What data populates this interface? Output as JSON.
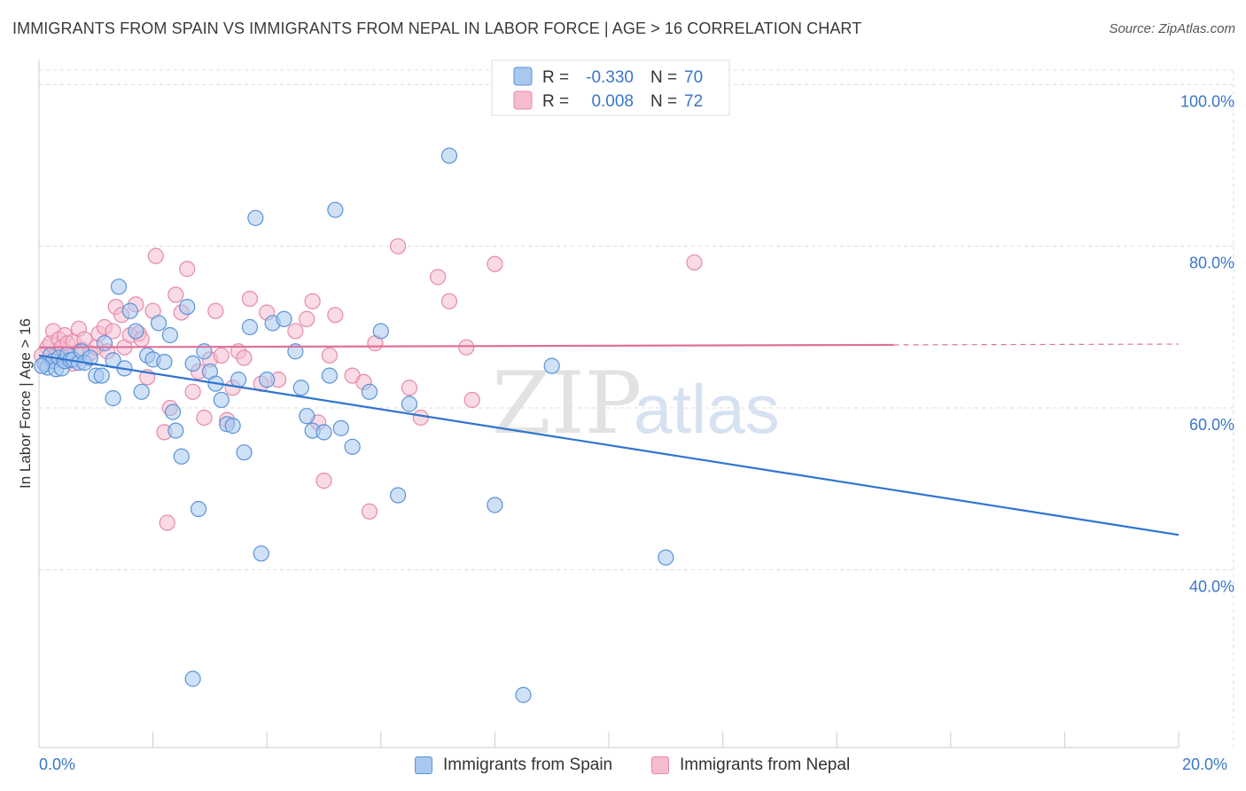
{
  "title": "IMMIGRANTS FROM SPAIN VS IMMIGRANTS FROM NEPAL IN LABOR FORCE | AGE > 16 CORRELATION CHART",
  "source": "Source: ZipAtlas.com",
  "watermark": {
    "zip": "ZIP",
    "atlas": "atlas"
  },
  "colors": {
    "spain_fill": "#a8c8f0",
    "spain_stroke": "#5b93d6",
    "spain_line": "#2f74d0",
    "nepal_fill": "#f6bcd0",
    "nepal_stroke": "#e58aa8",
    "nepal_line": "#e0709a",
    "axis_text": "#3a76c8"
  },
  "legend": {
    "rows": [
      {
        "r_label": "R =",
        "r_value": "-0.330",
        "n_label": "N =",
        "n_value": "70"
      },
      {
        "r_label": "R =",
        "r_value": "0.008",
        "n_label": "N =",
        "n_value": "72"
      }
    ]
  },
  "bottom_legend": [
    "Immigrants from Spain",
    "Immigrants from Nepal"
  ],
  "chart_data": {
    "type": "scatter",
    "title": "IMMIGRANTS FROM SPAIN VS IMMIGRANTS FROM NEPAL IN LABOR FORCE | AGE > 16 CORRELATION CHART",
    "xlabel": "",
    "ylabel": "In Labor Force | Age > 16",
    "xlim": [
      0,
      20
    ],
    "ylim": [
      18,
      103
    ],
    "x_tick_labels": [
      "0.0%",
      "20.0%"
    ],
    "y_ticks": [
      40,
      60,
      80,
      100
    ],
    "y_tick_labels": [
      "40.0%",
      "60.0%",
      "80.0%",
      "100.0%"
    ],
    "grid": true,
    "series": [
      {
        "name": "Immigrants from Spain",
        "r": -0.33,
        "n": 70,
        "trend": {
          "x": [
            0,
            20
          ],
          "y": [
            66.5,
            44.3
          ],
          "dashed_from": null
        },
        "points": [
          [
            0.1,
            65.5
          ],
          [
            0.15,
            65.0
          ],
          [
            0.2,
            66.5
          ],
          [
            0.25,
            65.8
          ],
          [
            0.3,
            64.8
          ],
          [
            0.35,
            66.2
          ],
          [
            0.4,
            64.9
          ],
          [
            0.45,
            65.8
          ],
          [
            0.5,
            66.6
          ],
          [
            0.55,
            65.9
          ],
          [
            0.6,
            66.0
          ],
          [
            0.7,
            65.6
          ],
          [
            0.75,
            67.0
          ],
          [
            0.8,
            65.6
          ],
          [
            0.9,
            66.2
          ],
          [
            1.0,
            64.0
          ],
          [
            1.1,
            64.0
          ],
          [
            1.15,
            68.0
          ],
          [
            1.3,
            65.9
          ],
          [
            1.3,
            61.2
          ],
          [
            1.5,
            64.9
          ],
          [
            1.6,
            72.0
          ],
          [
            1.7,
            69.5
          ],
          [
            1.8,
            62.0
          ],
          [
            1.9,
            66.5
          ],
          [
            2.0,
            66.0
          ],
          [
            2.1,
            70.5
          ],
          [
            2.2,
            65.7
          ],
          [
            2.3,
            69.0
          ],
          [
            2.35,
            59.5
          ],
          [
            2.4,
            57.2
          ],
          [
            2.5,
            54.0
          ],
          [
            2.6,
            72.5
          ],
          [
            2.7,
            65.5
          ],
          [
            2.8,
            47.5
          ],
          [
            2.9,
            67.0
          ],
          [
            3.0,
            64.5
          ],
          [
            3.1,
            63.0
          ],
          [
            3.2,
            61.0
          ],
          [
            3.3,
            58.0
          ],
          [
            3.5,
            63.5
          ],
          [
            3.6,
            54.5
          ],
          [
            3.7,
            70.0
          ],
          [
            3.8,
            83.5
          ],
          [
            3.9,
            42.0
          ],
          [
            4.0,
            63.5
          ],
          [
            4.1,
            70.5
          ],
          [
            4.3,
            71.0
          ],
          [
            4.5,
            67.0
          ],
          [
            4.6,
            62.5
          ],
          [
            4.7,
            59.0
          ],
          [
            4.8,
            57.2
          ],
          [
            5.0,
            57.0
          ],
          [
            5.1,
            64.0
          ],
          [
            5.2,
            84.5
          ],
          [
            5.3,
            57.5
          ],
          [
            5.5,
            55.2
          ],
          [
            5.8,
            62.0
          ],
          [
            6.0,
            69.5
          ],
          [
            6.3,
            49.2
          ],
          [
            6.5,
            60.5
          ],
          [
            7.2,
            91.2
          ],
          [
            8.0,
            48.0
          ],
          [
            8.5,
            24.5
          ],
          [
            9.0,
            65.2
          ],
          [
            11.0,
            41.5
          ],
          [
            1.4,
            75.0
          ],
          [
            0.05,
            65.2
          ],
          [
            2.7,
            26.5
          ],
          [
            3.4,
            57.8
          ]
        ]
      },
      {
        "name": "Immigrants from Nepal",
        "r": 0.008,
        "n": 72,
        "trend": {
          "x": [
            0,
            15
          ],
          "y": [
            67.5,
            67.8
          ],
          "dashed_to": 20,
          "dashed_end_y": 67.9
        },
        "points": [
          [
            0.1,
            65.5
          ],
          [
            0.15,
            67.5
          ],
          [
            0.2,
            68.0
          ],
          [
            0.25,
            69.5
          ],
          [
            0.3,
            66.5
          ],
          [
            0.35,
            68.5
          ],
          [
            0.4,
            67.5
          ],
          [
            0.45,
            69.0
          ],
          [
            0.5,
            68.0
          ],
          [
            0.55,
            66.5
          ],
          [
            0.6,
            68.2
          ],
          [
            0.7,
            69.8
          ],
          [
            0.75,
            67.2
          ],
          [
            0.8,
            68.5
          ],
          [
            0.9,
            66.8
          ],
          [
            1.0,
            67.5
          ],
          [
            1.05,
            69.2
          ],
          [
            1.15,
            70.0
          ],
          [
            1.3,
            69.5
          ],
          [
            1.35,
            72.5
          ],
          [
            1.45,
            71.5
          ],
          [
            1.5,
            67.5
          ],
          [
            1.6,
            69.0
          ],
          [
            1.7,
            72.8
          ],
          [
            1.75,
            69.2
          ],
          [
            1.8,
            68.5
          ],
          [
            1.9,
            63.8
          ],
          [
            2.0,
            72.0
          ],
          [
            2.05,
            78.8
          ],
          [
            2.2,
            57.0
          ],
          [
            2.25,
            45.8
          ],
          [
            2.4,
            74.0
          ],
          [
            2.5,
            71.8
          ],
          [
            2.6,
            77.2
          ],
          [
            2.7,
            62.0
          ],
          [
            2.8,
            64.5
          ],
          [
            2.9,
            58.8
          ],
          [
            3.0,
            66.0
          ],
          [
            3.1,
            72.0
          ],
          [
            3.2,
            66.5
          ],
          [
            3.3,
            58.5
          ],
          [
            3.4,
            62.5
          ],
          [
            3.5,
            67.0
          ],
          [
            3.6,
            66.2
          ],
          [
            3.7,
            73.5
          ],
          [
            4.0,
            71.8
          ],
          [
            4.2,
            63.5
          ],
          [
            4.5,
            69.5
          ],
          [
            4.7,
            71.0
          ],
          [
            4.8,
            73.2
          ],
          [
            4.9,
            58.2
          ],
          [
            5.0,
            51.0
          ],
          [
            5.1,
            66.5
          ],
          [
            5.2,
            71.5
          ],
          [
            5.5,
            64.0
          ],
          [
            5.7,
            63.2
          ],
          [
            5.8,
            47.2
          ],
          [
            5.9,
            68.0
          ],
          [
            6.3,
            80.0
          ],
          [
            6.5,
            62.5
          ],
          [
            6.7,
            58.8
          ],
          [
            7.0,
            76.2
          ],
          [
            7.2,
            73.2
          ],
          [
            7.5,
            67.5
          ],
          [
            7.6,
            61.0
          ],
          [
            8.0,
            77.8
          ],
          [
            11.5,
            78.0
          ],
          [
            0.05,
            66.5
          ],
          [
            1.2,
            67.0
          ],
          [
            2.3,
            60.0
          ],
          [
            3.9,
            63.0
          ],
          [
            0.6,
            65.5
          ]
        ]
      }
    ]
  }
}
